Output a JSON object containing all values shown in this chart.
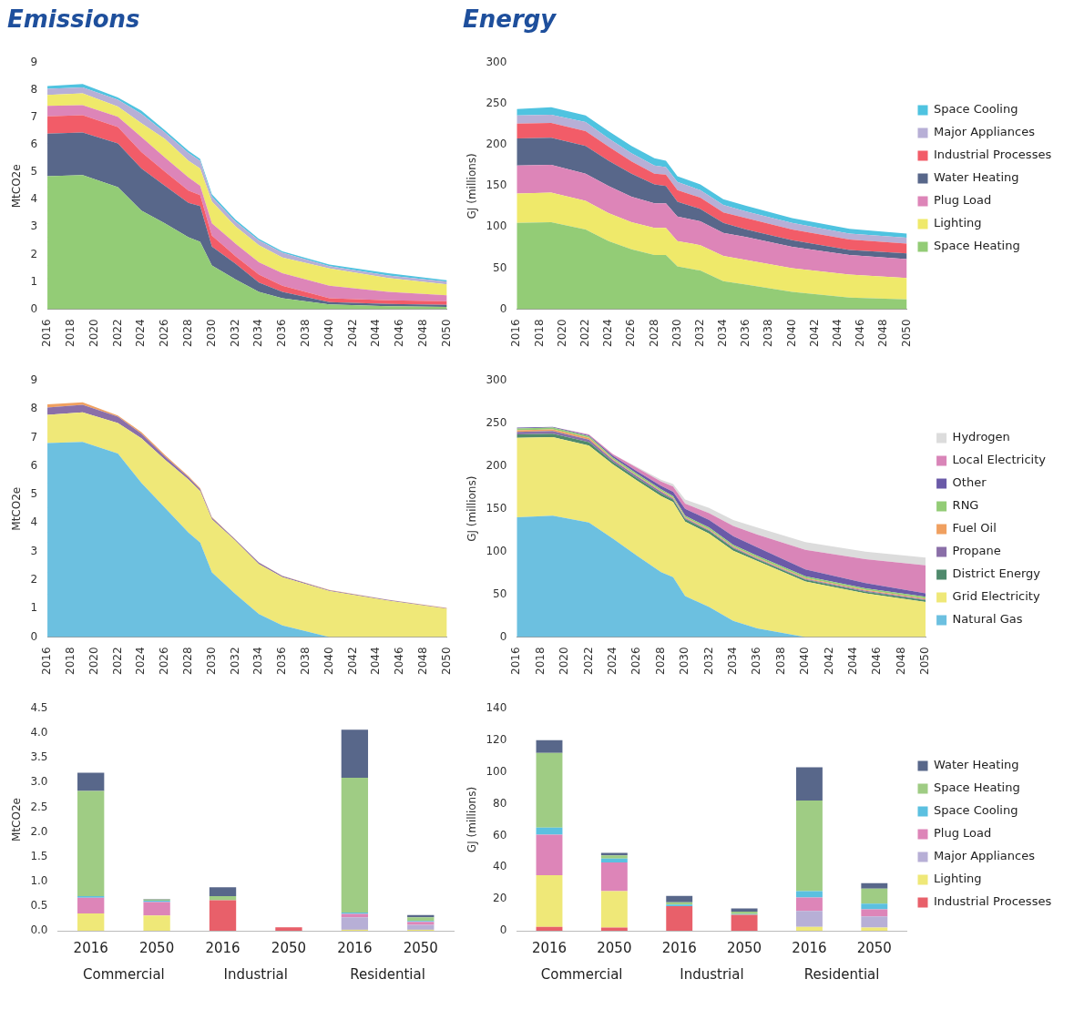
{
  "chart_data": [
    {
      "type": "area",
      "title": "Emissions",
      "ylabel": "MtCO2e",
      "stacked": true,
      "grid": false,
      "legend": false,
      "marker": "none",
      "x": [
        2016,
        2019,
        2022,
        2024,
        2026,
        2028,
        2029,
        2030,
        2032,
        2034,
        2036,
        2040,
        2045,
        2050
      ],
      "xlim": [
        2016,
        2050
      ],
      "xticks": [
        2016,
        2018,
        2020,
        2022,
        2024,
        2026,
        2028,
        2030,
        2032,
        2034,
        2036,
        2038,
        2040,
        2042,
        2044,
        2046,
        2048,
        2050
      ],
      "ylim": [
        0,
        9
      ],
      "yticks": [
        0,
        1,
        2,
        3,
        4,
        5,
        6,
        7,
        8,
        9
      ],
      "series": [
        {
          "color": "#93cc76",
          "values": [
            4.86,
            4.9,
            4.46,
            3.6,
            3.14,
            2.63,
            2.46,
            1.6,
            1.09,
            0.63,
            0.4,
            0.17,
            0.11,
            0.08
          ]
        },
        {
          "color": "#58678a",
          "values": [
            1.56,
            1.56,
            1.6,
            1.54,
            1.37,
            1.26,
            1.31,
            0.69,
            0.57,
            0.34,
            0.23,
            0.09,
            0.08,
            0.08
          ]
        },
        {
          "color": "#f25c68",
          "values": [
            0.63,
            0.63,
            0.6,
            0.6,
            0.52,
            0.45,
            0.4,
            0.4,
            0.28,
            0.29,
            0.23,
            0.14,
            0.13,
            0.13
          ]
        },
        {
          "color": "#dd85b8",
          "values": [
            0.38,
            0.37,
            0.37,
            0.55,
            0.51,
            0.48,
            0.34,
            0.45,
            0.46,
            0.45,
            0.45,
            0.46,
            0.31,
            0.22
          ]
        },
        {
          "color": "#efe96a",
          "values": [
            0.4,
            0.43,
            0.38,
            0.51,
            0.69,
            0.61,
            0.63,
            0.8,
            0.63,
            0.63,
            0.58,
            0.63,
            0.51,
            0.4
          ]
        },
        {
          "color": "#b7afd6",
          "values": [
            0.23,
            0.22,
            0.25,
            0.34,
            0.23,
            0.28,
            0.29,
            0.17,
            0.17,
            0.17,
            0.17,
            0.08,
            0.09,
            0.1
          ]
        },
        {
          "color": "#4fc3e0",
          "values": [
            0.1,
            0.12,
            0.08,
            0.12,
            0.08,
            0.08,
            0.06,
            0.09,
            0.08,
            0.06,
            0.05,
            0.06,
            0.08,
            0.05
          ]
        }
      ]
    },
    {
      "type": "area",
      "title": "Energy",
      "ylabel": "GJ (millions)",
      "stacked": true,
      "grid": false,
      "legend": "right",
      "marker": "none",
      "x": [
        2016,
        2019,
        2022,
        2024,
        2026,
        2028,
        2029,
        2030,
        2032,
        2034,
        2036,
        2040,
        2045,
        2050
      ],
      "xlim": [
        2016,
        2050
      ],
      "xticks": [
        2016,
        2018,
        2020,
        2022,
        2024,
        2026,
        2028,
        2030,
        2032,
        2034,
        2036,
        2038,
        2040,
        2042,
        2044,
        2046,
        2048,
        2050
      ],
      "ylim": [
        0,
        300
      ],
      "yticks": [
        0,
        50,
        100,
        150,
        200,
        250,
        300
      ],
      "series": [
        {
          "name": "Space Heating",
          "color": "#93cc76",
          "values": [
            105,
            106,
            97,
            83,
            73,
            66,
            66,
            52,
            47,
            34,
            30,
            21,
            14,
            12
          ]
        },
        {
          "name": "Lighting",
          "color": "#efe96a",
          "values": [
            36,
            36,
            35,
            34,
            33,
            33,
            33,
            31,
            31,
            31,
            30,
            29,
            28,
            26
          ]
        },
        {
          "name": "Plug Load",
          "color": "#dd85b8",
          "values": [
            34,
            34,
            33,
            33,
            31,
            30,
            30,
            30,
            29,
            28,
            28,
            26,
            24,
            23
          ]
        },
        {
          "name": "Water Heating",
          "color": "#58678a",
          "values": [
            33,
            33,
            34,
            31,
            28,
            23,
            21,
            18,
            15,
            12,
            9,
            8,
            6,
            7
          ]
        },
        {
          "name": "Industrial Processes",
          "color": "#f25c68",
          "values": [
            18,
            18,
            18,
            17,
            15,
            13,
            14,
            14,
            14,
            13,
            14,
            13,
            13,
            12
          ]
        },
        {
          "name": "Major Appliances",
          "color": "#b7afd6",
          "values": [
            10,
            10,
            11,
            10,
            10,
            10,
            9,
            10,
            9,
            9,
            8,
            8,
            7,
            7
          ]
        },
        {
          "name": "Space Cooling",
          "color": "#4fc3e0",
          "values": [
            8,
            9,
            8,
            9,
            9,
            9,
            8,
            7,
            7,
            7,
            7,
            6,
            6,
            5
          ]
        }
      ]
    },
    {
      "type": "area",
      "ylabel": "MtCO2e",
      "stacked": true,
      "grid": false,
      "legend": false,
      "marker": "none",
      "x": [
        2016,
        2019,
        2022,
        2024,
        2026,
        2028,
        2029,
        2030,
        2032,
        2034,
        2036,
        2040,
        2045,
        2050
      ],
      "xlim": [
        2016,
        2050
      ],
      "xticks": [
        2016,
        2018,
        2020,
        2022,
        2024,
        2026,
        2028,
        2030,
        2032,
        2034,
        2036,
        2038,
        2040,
        2042,
        2044,
        2046,
        2048,
        2050
      ],
      "ylim": [
        0,
        9
      ],
      "yticks": [
        0,
        1,
        2,
        3,
        4,
        5,
        6,
        7,
        8,
        9
      ],
      "series": [
        {
          "color": "#6cc0e0",
          "values": [
            6.81,
            6.85,
            6.44,
            5.41,
            4.54,
            3.67,
            3.32,
            2.27,
            1.51,
            0.81,
            0.41,
            0,
            0,
            0
          ]
        },
        {
          "color": "#efe878",
          "values": [
            0.99,
            1.04,
            1.07,
            1.57,
            1.69,
            1.86,
            1.8,
            1.86,
            1.87,
            1.75,
            1.69,
            1.61,
            1.28,
            0.99
          ]
        },
        {
          "color": "#8a6fa8",
          "values": [
            0.26,
            0.26,
            0.23,
            0.16,
            0.11,
            0.08,
            0.07,
            0.06,
            0.04,
            0.05,
            0.04,
            0.03,
            0.02,
            0.02
          ]
        },
        {
          "color": "#f0a060",
          "values": [
            0.11,
            0.09,
            0.04,
            0.05,
            0.05,
            0.04,
            0.04,
            0.02,
            0.01,
            0.01,
            0.01,
            0.01,
            0.01,
            0.01
          ]
        }
      ]
    },
    {
      "type": "area",
      "ylabel": "GJ (millions)",
      "stacked": true,
      "grid": false,
      "legend": "right",
      "marker": "none",
      "x": [
        2016,
        2019,
        2022,
        2024,
        2026,
        2028,
        2029,
        2030,
        2032,
        2034,
        2036,
        2040,
        2045,
        2050
      ],
      "xlim": [
        2016,
        2050
      ],
      "xticks": [
        2016,
        2018,
        2020,
        2022,
        2024,
        2026,
        2028,
        2030,
        2032,
        2034,
        2036,
        2038,
        2040,
        2042,
        2044,
        2046,
        2048,
        2050
      ],
      "ylim": [
        0,
        300
      ],
      "yticks": [
        0,
        50,
        100,
        150,
        200,
        250,
        300
      ],
      "series": [
        {
          "name": "Natural Gas",
          "color": "#6cc0e0",
          "values": [
            140,
            142,
            134,
            115,
            95,
            76,
            70,
            48,
            35,
            19,
            10,
            0,
            0,
            0
          ]
        },
        {
          "name": "Grid Electricity",
          "color": "#efe878",
          "values": [
            93,
            92,
            90,
            87,
            88,
            89,
            88,
            87,
            86,
            82,
            79,
            65,
            51,
            41
          ]
        },
        {
          "name": "District Energy",
          "color": "#4f8a6c",
          "values": [
            4,
            4,
            4,
            3,
            3,
            3,
            3,
            3,
            3,
            3,
            2,
            2,
            2,
            2
          ]
        },
        {
          "name": "Propane",
          "color": "#8a6fa8",
          "values": [
            3,
            3,
            3,
            2,
            2,
            2,
            1,
            1,
            1,
            1,
            1,
            1,
            1,
            1
          ]
        },
        {
          "name": "Fuel Oil",
          "color": "#f0a060",
          "values": [
            2,
            2,
            2,
            1,
            1,
            1,
            1,
            1,
            1,
            1,
            1,
            1,
            1,
            1
          ]
        },
        {
          "name": "RNG",
          "color": "#93cc76",
          "values": [
            2,
            2,
            2,
            2,
            2,
            2,
            2,
            2,
            2,
            2,
            2,
            2,
            2,
            2
          ]
        },
        {
          "name": "Other",
          "color": "#6a5aa8",
          "values": [
            1,
            1,
            1,
            2,
            3,
            4,
            5,
            8,
            9,
            10,
            10,
            8,
            6,
            4
          ]
        },
        {
          "name": "Local Electricity",
          "color": "#d985b8",
          "values": [
            0,
            0,
            1,
            2,
            4,
            5,
            6,
            6,
            8,
            12,
            15,
            23,
            28,
            33
          ]
        },
        {
          "name": "Hydrogen",
          "color": "#dcdcdc",
          "values": [
            0,
            0,
            0,
            0,
            1,
            2,
            3,
            5,
            6,
            7,
            8,
            9,
            9,
            9
          ]
        }
      ]
    },
    {
      "type": "bar",
      "ylabel": "MtCO2e",
      "stacked": true,
      "grid": false,
      "legend": false,
      "categories": [
        "2016",
        "2050",
        "2016",
        "2050",
        "2016",
        "2050"
      ],
      "annotations": [
        "Commercial",
        "Industrial",
        "Residential"
      ],
      "ylim": [
        0,
        4.5
      ],
      "yticks": [
        {
          "value": 0,
          "label": "0.0"
        },
        0.5,
        {
          "value": 1,
          "label": "1.0"
        },
        1.5,
        {
          "value": 2,
          "label": "2.0"
        },
        2.5,
        {
          "value": 3,
          "label": "3.0"
        },
        3.5,
        {
          "value": 4,
          "label": "4.0"
        },
        4.5
      ],
      "series": [
        {
          "color": "#e8606a",
          "values": [
            0,
            0,
            0.62,
            0.07,
            0,
            0
          ]
        },
        {
          "color": "#efe878",
          "values": [
            0.35,
            0.31,
            0,
            0,
            0.02,
            0.02
          ]
        },
        {
          "color": "#b7afd6",
          "values": [
            0,
            0,
            0,
            0,
            0.25,
            0.1
          ]
        },
        {
          "color": "#dd85b8",
          "values": [
            0.32,
            0.27,
            0,
            0,
            0.07,
            0.06
          ]
        },
        {
          "color": "#5bc0e0",
          "values": [
            0.03,
            0.03,
            0,
            0,
            0.03,
            0.02
          ]
        },
        {
          "color": "#9fcc84",
          "values": [
            2.13,
            0.02,
            0.08,
            null,
            2.73,
            0.07
          ]
        },
        {
          "color": "#58678a",
          "values": [
            0.37,
            0.01,
            0.18,
            0,
            0.97,
            0.05
          ]
        }
      ]
    },
    {
      "type": "bar",
      "ylabel": "GJ (millions)",
      "stacked": true,
      "grid": false,
      "legend": "right",
      "categories": [
        "2016",
        "2050",
        "2016",
        "2050",
        "2016",
        "2050"
      ],
      "annotations": [
        "Commercial",
        "Industrial",
        "Residential"
      ],
      "ylim": [
        0,
        140
      ],
      "yticks": [
        0,
        20,
        40,
        60,
        80,
        100,
        120,
        140
      ],
      "series": [
        {
          "name": "Industrial Processes",
          "color": "#e8606a",
          "values": [
            2.5,
            2,
            15.5,
            10,
            0,
            0
          ]
        },
        {
          "name": "Lighting",
          "color": "#efe878",
          "values": [
            32.5,
            23,
            0,
            0,
            2.5,
            2
          ]
        },
        {
          "name": "Major Appliances",
          "color": "#b7afd6",
          "values": [
            0,
            0,
            0,
            0,
            10,
            7
          ]
        },
        {
          "name": "Plug Load",
          "color": "#dd85b8",
          "values": [
            25.5,
            18,
            0,
            0,
            8.5,
            4.5
          ]
        },
        {
          "name": "Space Cooling",
          "color": "#5bc0e0",
          "values": [
            4.5,
            2.5,
            1,
            0.5,
            4,
            3.5
          ]
        },
        {
          "name": "Space Heating",
          "color": "#9fcc84",
          "values": [
            47,
            2,
            1.5,
            1.5,
            57,
            9.5
          ]
        },
        {
          "name": "Water Heating",
          "color": "#58678a",
          "values": [
            8,
            1.5,
            4,
            2,
            21,
            3.5
          ]
        }
      ]
    }
  ]
}
